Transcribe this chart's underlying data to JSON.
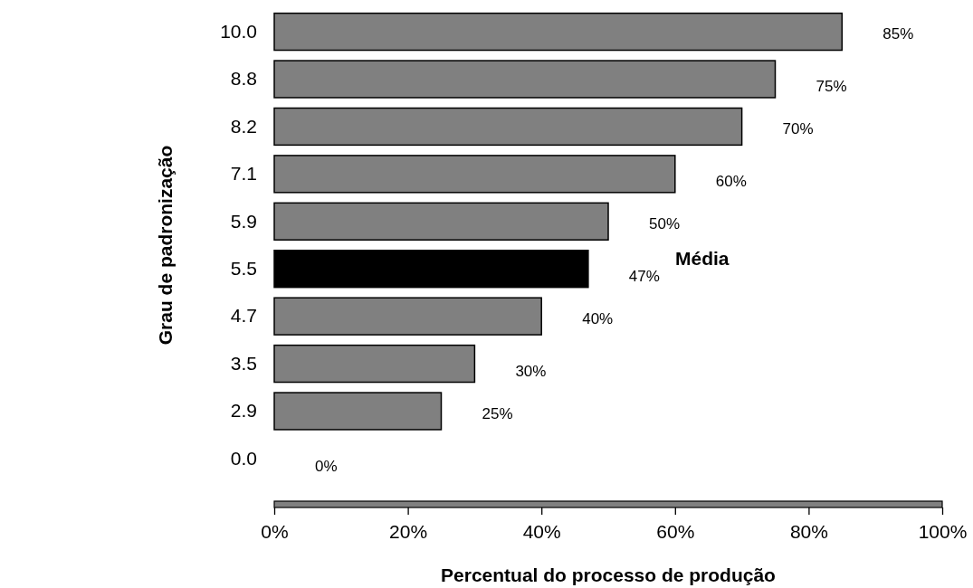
{
  "chart_data": {
    "type": "bar",
    "orientation": "horizontal",
    "xlabel": "Percentual do processo de produção",
    "ylabel": "Grau de padronização",
    "categories": [
      "10.0",
      "8.8",
      "8.2",
      "7.1",
      "5.9",
      "5.5",
      "4.7",
      "3.5",
      "2.9",
      "0.0"
    ],
    "values": [
      85,
      75,
      70,
      60,
      50,
      47,
      40,
      30,
      25,
      0
    ],
    "colors": [
      "#808080",
      "#808080",
      "#808080",
      "#808080",
      "#808080",
      "#000000",
      "#808080",
      "#808080",
      "#808080",
      "#000000"
    ],
    "value_labels": [
      "85%",
      "75%",
      "70%",
      "60%",
      "50%",
      "47%",
      "40%",
      "30%",
      "25%",
      "0%"
    ],
    "annotations": [
      "Média"
    ],
    "xlim": [
      0,
      100
    ],
    "xticks": [
      {
        "value": 0,
        "label": "0%"
      },
      {
        "value": 20,
        "label": "20%"
      },
      {
        "value": 40,
        "label": "40%"
      },
      {
        "value": 60,
        "label": "60%"
      },
      {
        "value": 80,
        "label": "80%"
      },
      {
        "value": 100,
        "label": "100%"
      }
    ],
    "grid": false
  }
}
